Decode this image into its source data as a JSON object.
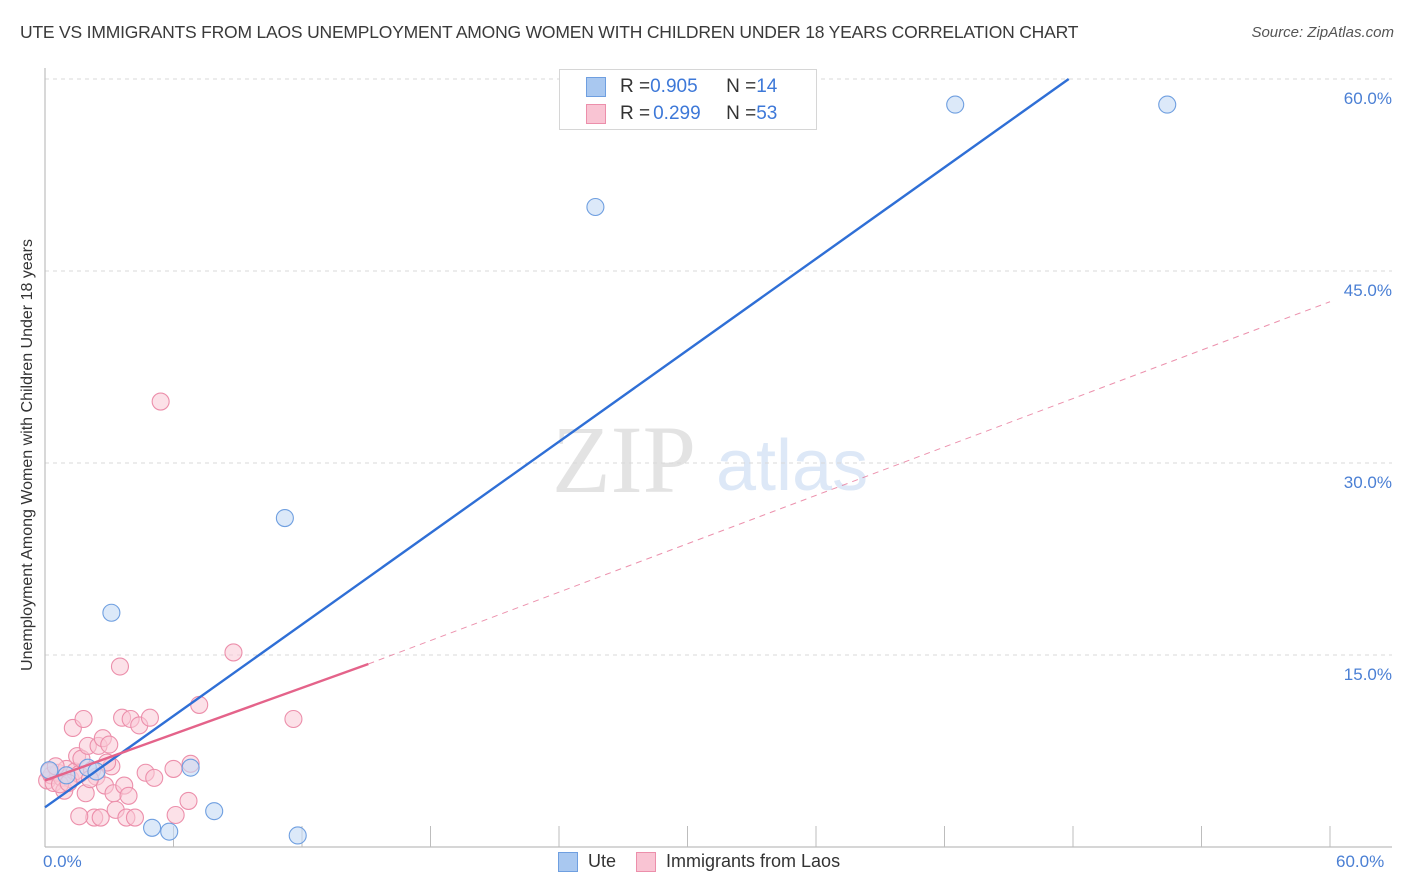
{
  "header": {
    "title": "UTE VS IMMIGRANTS FROM LAOS UNEMPLOYMENT AMONG WOMEN WITH CHILDREN UNDER 18 YEARS CORRELATION CHART",
    "source": "Source: ZipAtlas.com"
  },
  "watermark": {
    "part1": "ZIP",
    "part2": "atlas"
  },
  "legend": {
    "rows": [
      {
        "r_label": "R = ",
        "r_value": "0.905",
        "n_label": "N = ",
        "n_value": "14",
        "color": "#a9c8f0",
        "border": "#6f9fe0"
      },
      {
        "r_label": "R = ",
        "r_value": "0.299",
        "n_label": "N = ",
        "n_value": "53",
        "color": "#f9c4d3",
        "border": "#ec8fab"
      }
    ]
  },
  "bottom_legend": {
    "items": [
      {
        "label": "Ute",
        "color": "#a9c8f0",
        "border": "#6f9fe0"
      },
      {
        "label": "Immigrants from Laos",
        "color": "#f9c4d3",
        "border": "#ec8fab"
      }
    ]
  },
  "axes": {
    "x_min_label": "0.0%",
    "x_max_label": "60.0%",
    "y_label": "Unemployment Among Women with Children Under 18 years",
    "y_ticks": [
      "60.0%",
      "45.0%",
      "30.0%",
      "15.0%"
    ]
  },
  "colors": {
    "ute_fill": "#c5daf5",
    "ute_stroke": "#6f9fe0",
    "ute_line": "#2f6fd6",
    "laos_fill": "#f9c9d6",
    "laos_stroke": "#ec8fab",
    "laos_line": "#e4638a",
    "grid": "#d9d9d9",
    "axis": "#bdbdbd"
  },
  "chart_data": {
    "type": "scatter",
    "title": "UTE VS IMMIGRANTS FROM LAOS UNEMPLOYMENT AMONG WOMEN WITH CHILDREN UNDER 18 YEARS CORRELATION CHART",
    "xlabel": "",
    "ylabel": "Unemployment Among Women with Children Under 18 years",
    "xlim": [
      0,
      60
    ],
    "ylim": [
      0,
      60
    ],
    "x_ticks": [
      "0.0%",
      "60.0%"
    ],
    "y_ticks": [
      "15.0%",
      "30.0%",
      "45.0%",
      "60.0%"
    ],
    "grid": true,
    "legend_position": "top-center and bottom",
    "series": [
      {
        "name": "Ute",
        "R": 0.905,
        "N": 14,
        "points": [
          [
            0.2,
            6.0
          ],
          [
            2.0,
            6.2
          ],
          [
            2.4,
            5.9
          ],
          [
            6.8,
            6.2
          ],
          [
            3.1,
            18.3
          ],
          [
            5.0,
            1.5
          ],
          [
            5.8,
            1.2
          ],
          [
            7.9,
            2.8
          ],
          [
            11.8,
            0.9
          ],
          [
            11.2,
            25.7
          ],
          [
            25.7,
            50.0
          ],
          [
            42.5,
            58.0
          ],
          [
            52.4,
            58.0
          ],
          [
            1.0,
            5.6
          ]
        ],
        "trend_line": {
          "x0": 0.0,
          "y0": 3.1,
          "x1": 47.8,
          "y1": 60.0,
          "style": "solid"
        }
      },
      {
        "name": "Immigrants from Laos",
        "R": 0.299,
        "N": 53,
        "points": [
          [
            0.1,
            5.2
          ],
          [
            0.3,
            5.6
          ],
          [
            0.4,
            5.0
          ],
          [
            0.6,
            5.8
          ],
          [
            0.8,
            5.4
          ],
          [
            0.9,
            4.4
          ],
          [
            1.0,
            6.1
          ],
          [
            1.2,
            5.3
          ],
          [
            1.3,
            9.3
          ],
          [
            1.4,
            5.9
          ],
          [
            1.5,
            7.1
          ],
          [
            1.6,
            5.7
          ],
          [
            1.7,
            6.9
          ],
          [
            1.8,
            10.0
          ],
          [
            1.9,
            4.2
          ],
          [
            2.0,
            7.9
          ],
          [
            2.2,
            6.0
          ],
          [
            2.3,
            2.3
          ],
          [
            2.4,
            5.5
          ],
          [
            2.5,
            7.9
          ],
          [
            2.6,
            2.3
          ],
          [
            2.7,
            8.5
          ],
          [
            2.8,
            4.8
          ],
          [
            3.0,
            8.0
          ],
          [
            3.1,
            6.3
          ],
          [
            3.2,
            4.2
          ],
          [
            3.3,
            2.9
          ],
          [
            3.5,
            14.1
          ],
          [
            3.6,
            10.1
          ],
          [
            3.7,
            4.8
          ],
          [
            3.8,
            2.3
          ],
          [
            3.9,
            4.0
          ],
          [
            4.0,
            10.0
          ],
          [
            4.2,
            2.3
          ],
          [
            4.4,
            9.5
          ],
          [
            4.7,
            5.8
          ],
          [
            4.9,
            10.1
          ],
          [
            5.1,
            5.4
          ],
          [
            5.4,
            34.8
          ],
          [
            6.0,
            6.1
          ],
          [
            6.1,
            2.5
          ],
          [
            6.7,
            3.6
          ],
          [
            6.8,
            6.5
          ],
          [
            7.2,
            11.1
          ],
          [
            8.8,
            15.2
          ],
          [
            11.6,
            10.0
          ],
          [
            0.2,
            5.9
          ],
          [
            0.5,
            6.3
          ],
          [
            0.7,
            4.9
          ],
          [
            1.1,
            5.0
          ],
          [
            2.1,
            5.3
          ],
          [
            2.9,
            6.6
          ],
          [
            1.6,
            2.4
          ]
        ],
        "trend_line_solid": {
          "x0": 0.0,
          "y0": 5.2,
          "x1": 15.1,
          "y1": 14.3,
          "style": "solid"
        },
        "trend_line_dashed": {
          "x0": 15.1,
          "y0": 14.3,
          "x1": 60.0,
          "y1": 42.6,
          "style": "dashed"
        }
      }
    ]
  }
}
